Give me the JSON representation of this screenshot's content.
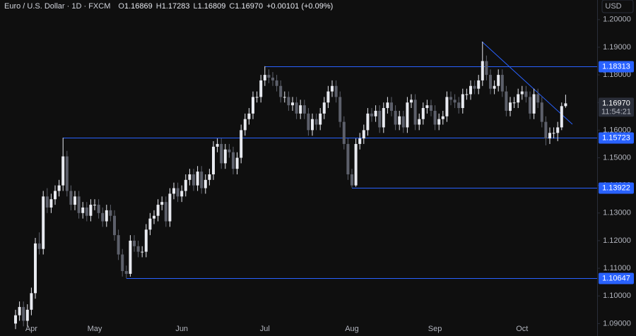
{
  "chart_data": {
    "type": "candlestick",
    "title": "Euro / U.S. Dollar · 1D · FXCM",
    "ohlc_legend": [
      {
        "key": "O",
        "value": "1.16869"
      },
      {
        "key": "H",
        "value": "1.17283"
      },
      {
        "key": "L",
        "value": "1.16809"
      },
      {
        "key": "C",
        "value": "1.16970"
      }
    ],
    "change": "+0.00101 (+0.09%)",
    "currency": "USD",
    "up_color": "#e8eaf0",
    "down_color": "#5d606b",
    "level_color": "#2962ff",
    "categories": [
      null,
      null,
      null,
      null,
      "Apr",
      null,
      null,
      null,
      null,
      null,
      null,
      null,
      null,
      null,
      null,
      null,
      null,
      null,
      null,
      null,
      "May",
      null,
      null,
      null,
      null,
      null,
      null,
      null,
      null,
      null,
      null,
      null,
      null,
      null,
      null,
      null,
      null,
      null,
      null,
      null,
      null,
      null,
      "Jun",
      null,
      null,
      null,
      null,
      null,
      null,
      null,
      null,
      null,
      null,
      null,
      null,
      null,
      null,
      null,
      null,
      null,
      null,
      null,
      null,
      "Jul",
      null,
      null,
      null,
      null,
      null,
      null,
      null,
      null,
      null,
      null,
      null,
      null,
      null,
      null,
      null,
      null,
      null,
      null,
      null,
      null,
      null,
      "Aug",
      null,
      null,
      null,
      null,
      null,
      null,
      null,
      null,
      null,
      null,
      null,
      null,
      null,
      null,
      null,
      null,
      null,
      null,
      null,
      null,
      "Sep",
      null,
      null,
      null,
      null,
      null,
      null,
      null,
      null,
      null,
      null,
      null,
      null,
      null,
      null,
      null,
      null,
      null,
      null,
      null,
      null,
      null,
      "Oct",
      null,
      null,
      null,
      null,
      null,
      null,
      null,
      null,
      null,
      null,
      null
    ],
    "open": [
      1.09,
      1.093,
      1.096,
      1.091,
      1.095,
      1.101,
      1.119,
      1.117,
      1.136,
      1.132,
      1.135,
      1.138,
      1.14,
      1.1505,
      1.138,
      1.133,
      1.136,
      1.13,
      1.132,
      1.129,
      1.133,
      1.133,
      1.13,
      1.127,
      1.131,
      1.129,
      1.122,
      1.115,
      1.109,
      1.108,
      1.12,
      1.118,
      1.116,
      1.116,
      1.124,
      1.128,
      1.129,
      1.133,
      1.134,
      1.127,
      1.137,
      1.139,
      1.136,
      1.138,
      1.142,
      1.144,
      1.14,
      1.145,
      1.139,
      1.142,
      1.144,
      1.154,
      1.155,
      1.148,
      1.153,
      1.152,
      1.146,
      1.15,
      1.16,
      1.164,
      1.166,
      1.172,
      1.172,
      1.178,
      1.18,
      1.179,
      1.178,
      1.176,
      1.172,
      1.172,
      1.169,
      1.17,
      1.166,
      1.169,
      1.166,
      1.16,
      1.164,
      1.162,
      1.166,
      1.17,
      1.174,
      1.176,
      1.172,
      1.163,
      1.155,
      1.144,
      1.14,
      1.155,
      1.157,
      1.16,
      1.166,
      1.165,
      1.167,
      1.161,
      1.168,
      1.17,
      1.167,
      1.162,
      1.165,
      1.161,
      1.17,
      1.171,
      1.162,
      1.164,
      1.168,
      1.169,
      1.167,
      1.162,
      1.164,
      1.165,
      1.172,
      1.171,
      1.17,
      1.168,
      1.173,
      1.173,
      1.176,
      1.175,
      1.178,
      1.185,
      1.18,
      1.175,
      1.176,
      1.18,
      1.174,
      1.167,
      1.17,
      1.17,
      1.173,
      1.174,
      1.172,
      1.166,
      1.173,
      1.17,
      1.163,
      1.157,
      1.159,
      1.159,
      1.161,
      1.16869
    ],
    "high": [
      1.095,
      1.098,
      1.098,
      1.097,
      1.103,
      1.121,
      1.123,
      1.138,
      1.139,
      1.137,
      1.14,
      1.142,
      1.15723,
      1.1525,
      1.14,
      1.138,
      1.138,
      1.134,
      1.134,
      1.135,
      1.135,
      1.135,
      1.132,
      1.133,
      1.133,
      1.131,
      1.124,
      1.117,
      1.111,
      1.122,
      1.122,
      1.12,
      1.118,
      1.126,
      1.13,
      1.131,
      1.135,
      1.136,
      1.136,
      1.139,
      1.141,
      1.141,
      1.14,
      1.144,
      1.146,
      1.146,
      1.147,
      1.147,
      1.144,
      1.146,
      1.156,
      1.157,
      1.157,
      1.155,
      1.155,
      1.154,
      1.152,
      1.162,
      1.166,
      1.168,
      1.174,
      1.174,
      1.18,
      1.18313,
      1.182,
      1.181,
      1.18,
      1.178,
      1.174,
      1.174,
      1.172,
      1.172,
      1.171,
      1.171,
      1.168,
      1.166,
      1.166,
      1.168,
      1.172,
      1.176,
      1.178,
      1.178,
      1.174,
      1.165,
      1.157,
      1.146,
      1.157,
      1.159,
      1.162,
      1.168,
      1.168,
      1.169,
      1.169,
      1.17,
      1.172,
      1.172,
      1.169,
      1.167,
      1.167,
      1.172,
      1.173,
      1.173,
      1.166,
      1.17,
      1.171,
      1.171,
      1.169,
      1.166,
      1.167,
      1.174,
      1.174,
      1.173,
      1.172,
      1.175,
      1.175,
      1.178,
      1.178,
      1.18,
      1.192,
      1.187,
      1.182,
      1.178,
      1.182,
      1.182,
      1.176,
      1.172,
      1.172,
      1.175,
      1.176,
      1.176,
      1.174,
      1.175,
      1.175,
      1.172,
      1.165,
      1.161,
      1.161,
      1.163,
      1.17,
      1.17283
    ],
    "low": [
      1.088,
      1.091,
      1.089,
      1.089,
      1.093,
      1.099,
      1.115,
      1.115,
      1.13,
      1.13,
      1.133,
      1.136,
      1.138,
      1.136,
      1.131,
      1.131,
      1.128,
      1.128,
      1.127,
      1.127,
      1.131,
      1.128,
      1.125,
      1.125,
      1.127,
      1.12,
      1.113,
      1.107,
      1.10647,
      1.107,
      1.116,
      1.114,
      1.114,
      1.114,
      1.122,
      1.126,
      1.127,
      1.131,
      1.125,
      1.125,
      1.135,
      1.134,
      1.134,
      1.136,
      1.14,
      1.138,
      1.138,
      1.137,
      1.137,
      1.14,
      1.142,
      1.152,
      1.146,
      1.146,
      1.15,
      1.144,
      1.144,
      1.148,
      1.158,
      1.162,
      1.164,
      1.17,
      1.17,
      1.176,
      1.177,
      1.176,
      1.174,
      1.17,
      1.17,
      1.167,
      1.167,
      1.164,
      1.164,
      1.164,
      1.158,
      1.158,
      1.16,
      1.16,
      1.164,
      1.168,
      1.172,
      1.17,
      1.161,
      1.153,
      1.142,
      1.13922,
      1.1395,
      1.153,
      1.155,
      1.158,
      1.163,
      1.163,
      1.159,
      1.159,
      1.166,
      1.165,
      1.16,
      1.16,
      1.159,
      1.159,
      1.168,
      1.16,
      1.16,
      1.162,
      1.166,
      1.165,
      1.16,
      1.16,
      1.162,
      1.163,
      1.169,
      1.168,
      1.166,
      1.166,
      1.171,
      1.171,
      1.173,
      1.173,
      1.176,
      1.178,
      1.173,
      1.173,
      1.174,
      1.172,
      1.165,
      1.165,
      1.168,
      1.168,
      1.171,
      1.17,
      1.164,
      1.164,
      1.168,
      1.161,
      1.1545,
      1.155,
      1.157,
      1.156,
      1.16,
      1.16809
    ],
    "close": [
      1.093,
      1.096,
      1.091,
      1.095,
      1.101,
      1.119,
      1.117,
      1.136,
      1.132,
      1.135,
      1.138,
      1.14,
      1.1505,
      1.138,
      1.133,
      1.136,
      1.13,
      1.132,
      1.129,
      1.133,
      1.133,
      1.13,
      1.127,
      1.131,
      1.129,
      1.122,
      1.115,
      1.109,
      1.108,
      1.12,
      1.118,
      1.116,
      1.116,
      1.124,
      1.128,
      1.129,
      1.133,
      1.134,
      1.127,
      1.137,
      1.139,
      1.136,
      1.138,
      1.142,
      1.144,
      1.14,
      1.145,
      1.139,
      1.142,
      1.144,
      1.154,
      1.155,
      1.148,
      1.153,
      1.152,
      1.146,
      1.15,
      1.16,
      1.164,
      1.166,
      1.172,
      1.172,
      1.178,
      1.18,
      1.179,
      1.178,
      1.176,
      1.172,
      1.172,
      1.169,
      1.17,
      1.166,
      1.169,
      1.166,
      1.16,
      1.164,
      1.162,
      1.166,
      1.17,
      1.174,
      1.176,
      1.172,
      1.163,
      1.155,
      1.144,
      1.14,
      1.155,
      1.157,
      1.16,
      1.166,
      1.165,
      1.167,
      1.161,
      1.168,
      1.17,
      1.167,
      1.162,
      1.165,
      1.161,
      1.17,
      1.171,
      1.162,
      1.164,
      1.168,
      1.169,
      1.167,
      1.162,
      1.164,
      1.165,
      1.172,
      1.171,
      1.17,
      1.168,
      1.173,
      1.173,
      1.176,
      1.175,
      1.178,
      1.185,
      1.18,
      1.175,
      1.176,
      1.18,
      1.174,
      1.167,
      1.17,
      1.17,
      1.173,
      1.174,
      1.172,
      1.166,
      1.173,
      1.17,
      1.163,
      1.157,
      1.159,
      1.159,
      1.161,
      1.16869,
      1.1697
    ],
    "levels": [
      1.18313,
      1.15723,
      1.13922,
      1.10647
    ],
    "last_price": {
      "value": 1.1697,
      "label": "1.16970"
    },
    "countdown": "11:54:21",
    "ylim": [
      1.0855,
      1.2071
    ],
    "yticks": [
      {
        "value": 1.09,
        "label": "1.09000"
      },
      {
        "value": 1.1,
        "label": "1.10000"
      },
      {
        "value": 1.11,
        "label": "1.11000"
      },
      {
        "value": 1.12,
        "label": "1.12000"
      },
      {
        "value": 1.13,
        "label": "1.13000"
      },
      {
        "value": 1.14,
        "label": "1.14000"
      },
      {
        "value": 1.15,
        "label": "1.15000"
      },
      {
        "value": 1.16,
        "label": "1.16000"
      },
      {
        "value": 1.17,
        "label": "1.17000"
      },
      {
        "value": 1.18,
        "label": "1.18000"
      },
      {
        "value": 1.19,
        "label": "1.19000"
      },
      {
        "value": 1.2,
        "label": "1.20000"
      }
    ]
  }
}
